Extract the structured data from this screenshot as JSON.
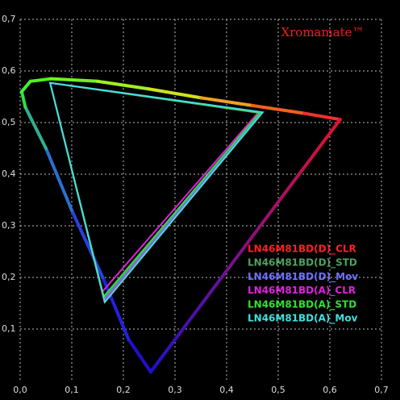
{
  "chart_data": {
    "type": "chromaticity",
    "title": "Xromamate™",
    "xlim": [
      0,
      0.7
    ],
    "ylim": [
      0,
      0.7
    ],
    "xticks": [
      {
        "value": 0,
        "label": "0,0"
      },
      {
        "value": 0.1,
        "label": "0,1"
      },
      {
        "value": 0.2,
        "label": "0,2"
      },
      {
        "value": 0.3,
        "label": "0,3"
      },
      {
        "value": 0.4,
        "label": "0,4"
      },
      {
        "value": 0.5,
        "label": "0,5"
      },
      {
        "value": 0.6,
        "label": "0,6"
      },
      {
        "value": 0.7,
        "label": "0,7"
      }
    ],
    "yticks": [
      {
        "value": 0.1,
        "label": "0,1"
      },
      {
        "value": 0.2,
        "label": "0,2"
      },
      {
        "value": 0.3,
        "label": "0,3"
      },
      {
        "value": 0.4,
        "label": "0,4"
      },
      {
        "value": 0.5,
        "label": "0,5"
      },
      {
        "value": 0.6,
        "label": "0,6"
      },
      {
        "value": 0.7,
        "label": "0,7"
      }
    ],
    "grid": true,
    "spectral_locus": {
      "u": [
        0.253,
        0.21,
        0.16,
        0.1,
        0.05,
        0.01,
        0.003,
        0.02,
        0.06,
        0.15,
        0.25,
        0.35,
        0.45,
        0.55,
        0.62
      ],
      "v": [
        0.017,
        0.08,
        0.2,
        0.33,
        0.45,
        0.53,
        0.56,
        0.58,
        0.585,
        0.58,
        0.565,
        0.548,
        0.533,
        0.518,
        0.506
      ],
      "colors": [
        "#2010d0",
        "#2222e0",
        "#2a40e0",
        "#2a70d0",
        "#30b090",
        "#30e040",
        "#40f030",
        "#50f020",
        "#70f020",
        "#a0f020",
        "#d0e020",
        "#f0a020",
        "#f06020",
        "#f03030",
        "#e81030"
      ]
    },
    "series": [
      {
        "name": "LN46M81BD(D)_CLR",
        "color": "#ff2020",
        "u": [
          0.058,
          0.468,
          0.163
        ],
        "v": [
          0.577,
          0.52,
          0.154
        ]
      },
      {
        "name": "LN46M81BD(D)_STD",
        "color": "#4f9f5f",
        "u": [
          0.058,
          0.465,
          0.162
        ],
        "v": [
          0.577,
          0.52,
          0.16
        ]
      },
      {
        "name": "LN46M81BD(D)_Mov",
        "color": "#7070ff",
        "u": [
          0.058,
          0.466,
          0.163
        ],
        "v": [
          0.577,
          0.52,
          0.157
        ]
      },
      {
        "name": "LN46M81BD(A)_CLR",
        "color": "#e020e0",
        "u": [
          0.058,
          0.461,
          0.159
        ],
        "v": [
          0.577,
          0.519,
          0.172
        ]
      },
      {
        "name": "LN46M81BD(A)_STD",
        "color": "#30e030",
        "u": [
          0.058,
          0.464,
          0.162
        ],
        "v": [
          0.577,
          0.519,
          0.163
        ]
      },
      {
        "name": "LN46M81BD(A)_Mov",
        "color": "#40e0e0",
        "u": [
          0.058,
          0.47,
          0.164
        ],
        "v": [
          0.577,
          0.52,
          0.152
        ]
      }
    ]
  }
}
